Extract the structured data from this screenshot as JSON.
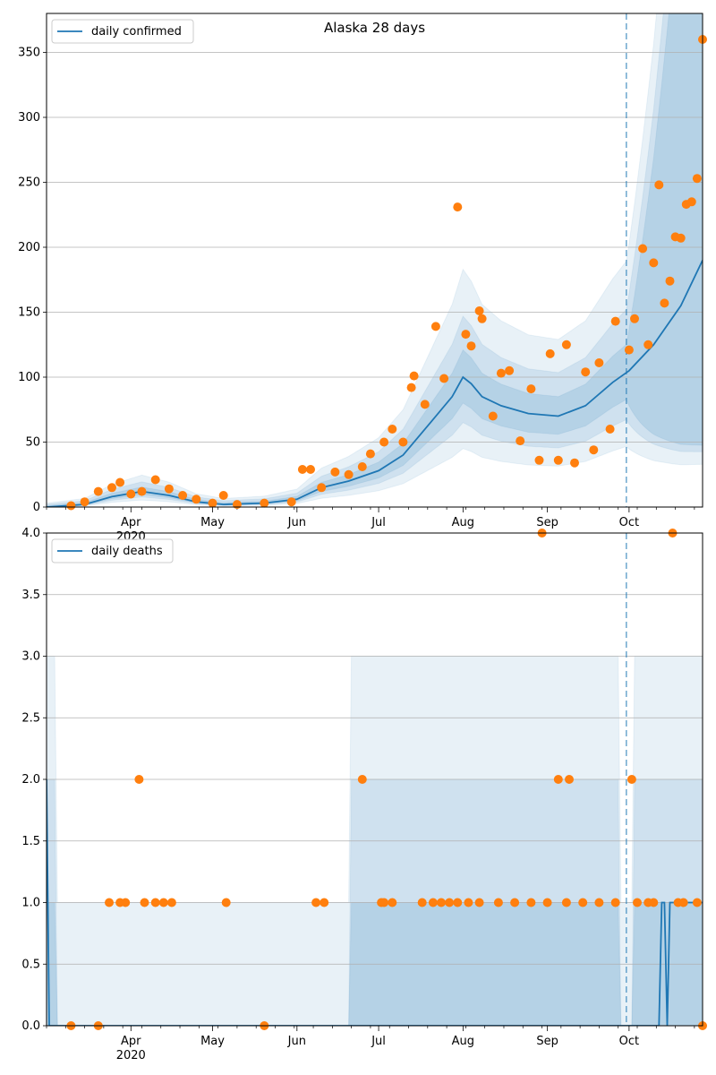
{
  "chart_data": [
    {
      "type": "line",
      "title": "Alaska 28 days",
      "legend": "top-left",
      "grid": "horizontal",
      "xlabel": "",
      "ylabel": "",
      "x_range": [
        "2020-03-01",
        "2020-10-28"
      ],
      "ylim": [
        0,
        380
      ],
      "y_ticks": [
        0,
        50,
        100,
        150,
        200,
        250,
        300,
        350
      ],
      "x_ticks": [
        {
          "label": "Apr",
          "date": "2020-04-01"
        },
        {
          "label": "May",
          "date": "2020-05-01"
        },
        {
          "label": "Jun",
          "date": "2020-06-01"
        },
        {
          "label": "Jul",
          "date": "2020-07-01"
        },
        {
          "label": "Aug",
          "date": "2020-08-01"
        },
        {
          "label": "Sep",
          "date": "2020-09-01"
        },
        {
          "label": "Oct",
          "date": "2020-10-01"
        }
      ],
      "year_label": "2020",
      "forecast_start": "2020-09-30",
      "series": [
        {
          "name": "daily confirmed",
          "kind": "line",
          "color": "#1f77b4",
          "points": [
            [
              "2020-03-01",
              0
            ],
            [
              "2020-03-15",
              2
            ],
            [
              "2020-03-25",
              8
            ],
            [
              "2020-04-05",
              12
            ],
            [
              "2020-04-15",
              9
            ],
            [
              "2020-04-25",
              4
            ],
            [
              "2020-05-05",
              2
            ],
            [
              "2020-05-20",
              3
            ],
            [
              "2020-06-01",
              6
            ],
            [
              "2020-06-10",
              15
            ],
            [
              "2020-06-20",
              20
            ],
            [
              "2020-07-01",
              28
            ],
            [
              "2020-07-10",
              40
            ],
            [
              "2020-07-20",
              65
            ],
            [
              "2020-07-28",
              85
            ],
            [
              "2020-08-01",
              100
            ],
            [
              "2020-08-04",
              95
            ],
            [
              "2020-08-08",
              85
            ],
            [
              "2020-08-15",
              78
            ],
            [
              "2020-08-25",
              72
            ],
            [
              "2020-09-05",
              70
            ],
            [
              "2020-09-15",
              78
            ],
            [
              "2020-09-25",
              96
            ],
            [
              "2020-10-01",
              105
            ],
            [
              "2020-10-10",
              125
            ],
            [
              "2020-10-20",
              155
            ],
            [
              "2020-10-28",
              190
            ]
          ]
        },
        {
          "name": "",
          "kind": "observed",
          "color": "#ff7f0e",
          "points": [
            [
              "2020-03-10",
              1
            ],
            [
              "2020-03-15",
              4
            ],
            [
              "2020-03-20",
              12
            ],
            [
              "2020-03-25",
              15
            ],
            [
              "2020-03-28",
              19
            ],
            [
              "2020-04-01",
              10
            ],
            [
              "2020-04-05",
              12
            ],
            [
              "2020-04-10",
              21
            ],
            [
              "2020-04-15",
              14
            ],
            [
              "2020-04-20",
              9
            ],
            [
              "2020-04-25",
              6
            ],
            [
              "2020-05-01",
              3
            ],
            [
              "2020-05-05",
              9
            ],
            [
              "2020-05-10",
              2
            ],
            [
              "2020-05-20",
              3
            ],
            [
              "2020-05-30",
              4
            ],
            [
              "2020-06-03",
              29
            ],
            [
              "2020-06-06",
              29
            ],
            [
              "2020-06-10",
              15
            ],
            [
              "2020-06-15",
              27
            ],
            [
              "2020-06-20",
              25
            ],
            [
              "2020-06-25",
              31
            ],
            [
              "2020-06-28",
              41
            ],
            [
              "2020-07-03",
              50
            ],
            [
              "2020-07-06",
              60
            ],
            [
              "2020-07-10",
              50
            ],
            [
              "2020-07-13",
              92
            ],
            [
              "2020-07-14",
              101
            ],
            [
              "2020-07-18",
              79
            ],
            [
              "2020-07-22",
              139
            ],
            [
              "2020-07-25",
              99
            ],
            [
              "2020-07-30",
              231
            ],
            [
              "2020-08-02",
              133
            ],
            [
              "2020-08-04",
              124
            ],
            [
              "2020-08-07",
              151
            ],
            [
              "2020-08-08",
              145
            ],
            [
              "2020-08-12",
              70
            ],
            [
              "2020-08-15",
              103
            ],
            [
              "2020-08-18",
              105
            ],
            [
              "2020-08-22",
              51
            ],
            [
              "2020-08-26",
              91
            ],
            [
              "2020-08-29",
              36
            ],
            [
              "2020-09-02",
              118
            ],
            [
              "2020-09-05",
              36
            ],
            [
              "2020-09-08",
              125
            ],
            [
              "2020-09-11",
              34
            ],
            [
              "2020-09-15",
              104
            ],
            [
              "2020-09-18",
              44
            ],
            [
              "2020-09-20",
              111
            ],
            [
              "2020-09-24",
              60
            ],
            [
              "2020-09-26",
              143
            ],
            [
              "2020-10-01",
              121
            ],
            [
              "2020-10-03",
              145
            ],
            [
              "2020-10-06",
              199
            ],
            [
              "2020-10-08",
              125
            ],
            [
              "2020-10-10",
              188
            ],
            [
              "2020-10-12",
              248
            ],
            [
              "2020-10-14",
              157
            ],
            [
              "2020-10-16",
              174
            ],
            [
              "2020-10-18",
              208
            ],
            [
              "2020-10-20",
              207
            ],
            [
              "2020-10-22",
              233
            ],
            [
              "2020-10-24",
              235
            ],
            [
              "2020-10-26",
              253
            ],
            [
              "2020-10-28",
              360
            ]
          ]
        }
      ]
    },
    {
      "type": "line",
      "title": "",
      "legend": "top-left",
      "grid": "horizontal",
      "xlabel": "",
      "ylabel": "",
      "x_range": [
        "2020-03-01",
        "2020-10-28"
      ],
      "ylim": [
        0,
        4
      ],
      "y_ticks": [
        0.0,
        0.5,
        1.0,
        1.5,
        2.0,
        2.5,
        3.0,
        3.5,
        4.0
      ],
      "x_ticks": [
        {
          "label": "Apr",
          "date": "2020-04-01"
        },
        {
          "label": "May",
          "date": "2020-05-01"
        },
        {
          "label": "Jun",
          "date": "2020-06-01"
        },
        {
          "label": "Jul",
          "date": "2020-07-01"
        },
        {
          "label": "Aug",
          "date": "2020-08-01"
        },
        {
          "label": "Sep",
          "date": "2020-09-01"
        },
        {
          "label": "Oct",
          "date": "2020-10-01"
        }
      ],
      "year_label": "2020",
      "forecast_start": "2020-09-30",
      "series": [
        {
          "name": "daily deaths",
          "kind": "line",
          "color": "#1f77b4",
          "points": [
            [
              "2020-03-01",
              2.0
            ],
            [
              "2020-03-02",
              0
            ],
            [
              "2020-10-12",
              0
            ],
            [
              "2020-10-13",
              1.0
            ],
            [
              "2020-10-14",
              1.0
            ],
            [
              "2020-10-15",
              0
            ],
            [
              "2020-10-16",
              1.0
            ],
            [
              "2020-10-28",
              1.0
            ]
          ]
        },
        {
          "name": "",
          "kind": "observed",
          "color": "#ff7f0e",
          "points": [
            [
              "2020-03-10",
              0
            ],
            [
              "2020-03-20",
              0
            ],
            [
              "2020-03-24",
              1
            ],
            [
              "2020-03-28",
              1
            ],
            [
              "2020-03-30",
              1
            ],
            [
              "2020-04-04",
              2
            ],
            [
              "2020-04-06",
              1
            ],
            [
              "2020-04-10",
              1
            ],
            [
              "2020-04-13",
              1
            ],
            [
              "2020-04-16",
              1
            ],
            [
              "2020-05-06",
              1
            ],
            [
              "2020-05-20",
              0
            ],
            [
              "2020-06-08",
              1
            ],
            [
              "2020-06-11",
              1
            ],
            [
              "2020-06-25",
              2
            ],
            [
              "2020-07-02",
              1
            ],
            [
              "2020-07-03",
              1
            ],
            [
              "2020-07-06",
              1
            ],
            [
              "2020-07-17",
              1
            ],
            [
              "2020-07-21",
              1
            ],
            [
              "2020-07-24",
              1
            ],
            [
              "2020-07-27",
              1
            ],
            [
              "2020-07-30",
              1
            ],
            [
              "2020-08-03",
              1
            ],
            [
              "2020-08-07",
              1
            ],
            [
              "2020-08-14",
              1
            ],
            [
              "2020-08-20",
              1
            ],
            [
              "2020-08-26",
              1
            ],
            [
              "2020-08-30",
              4
            ],
            [
              "2020-09-01",
              1
            ],
            [
              "2020-09-05",
              2
            ],
            [
              "2020-09-08",
              1
            ],
            [
              "2020-09-09",
              2
            ],
            [
              "2020-09-14",
              1
            ],
            [
              "2020-09-20",
              1
            ],
            [
              "2020-09-26",
              1
            ],
            [
              "2020-10-02",
              2
            ],
            [
              "2020-10-04",
              1
            ],
            [
              "2020-10-08",
              1
            ],
            [
              "2020-10-10",
              1
            ],
            [
              "2020-10-17",
              4
            ],
            [
              "2020-10-19",
              1
            ],
            [
              "2020-10-21",
              1
            ],
            [
              "2020-10-26",
              1
            ],
            [
              "2020-10-28",
              0
            ]
          ]
        }
      ]
    }
  ],
  "colors": {
    "line": "#1f77b4",
    "points": "#ff7f0e",
    "band": "#1f77b4",
    "grid": "#b0b0b0",
    "forecast_line": "#1f77b4"
  }
}
